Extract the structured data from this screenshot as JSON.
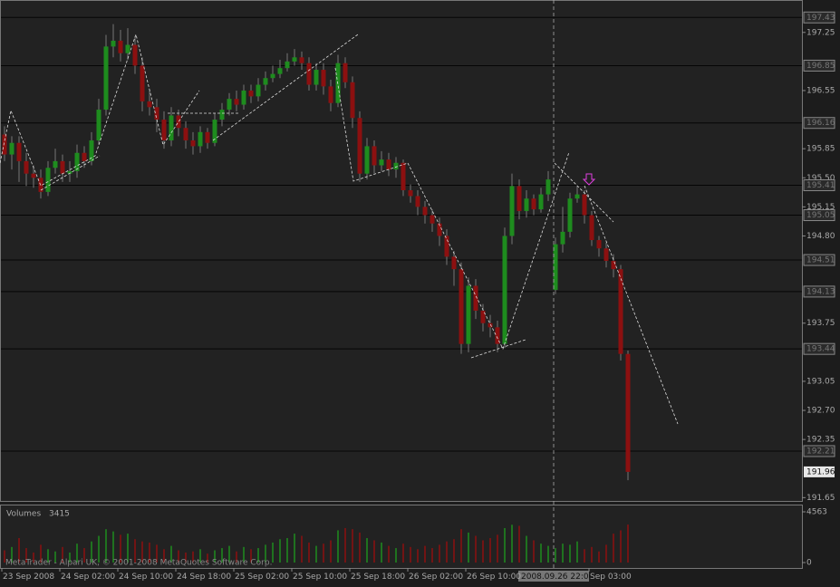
{
  "chart_data": {
    "type": "candlestick",
    "categories": [
      "23 Sep 2008",
      null,
      null,
      null,
      null,
      null,
      null,
      null,
      "24 Sep 02:00",
      null,
      null,
      null,
      null,
      null,
      null,
      null,
      "24 Sep 10:00",
      null,
      null,
      null,
      null,
      null,
      null,
      null,
      "24 Sep 18:00",
      null,
      null,
      null,
      null,
      null,
      null,
      null,
      "25 Sep 02:00",
      null,
      null,
      null,
      null,
      null,
      null,
      null,
      "25 Sep 10:00",
      null,
      null,
      null,
      null,
      null,
      null,
      null,
      "25 Sep 18:00",
      null,
      null,
      null,
      null,
      null,
      null,
      null,
      "26 Sep 02:00",
      null,
      null,
      null,
      null,
      null,
      null,
      null,
      "26 Sep 10:00",
      null,
      null,
      null,
      null,
      null,
      null,
      null,
      null,
      null,
      null,
      null,
      null,
      null,
      null,
      null,
      null,
      "Sep 03:00",
      null,
      null,
      null,
      null,
      null
    ],
    "open": [
      196.02,
      195.78,
      195.92,
      195.7,
      195.55,
      195.5,
      195.33,
      195.62,
      195.7,
      195.55,
      195.58,
      195.8,
      195.7,
      195.95,
      196.32,
      197.08,
      197.15,
      197.0,
      197.1,
      196.85,
      196.42,
      196.35,
      196.2,
      195.95,
      196.25,
      196.1,
      195.95,
      195.88,
      196.05,
      195.92,
      196.2,
      196.32,
      196.45,
      196.38,
      196.55,
      196.48,
      196.62,
      196.7,
      196.75,
      196.82,
      196.9,
      196.95,
      196.88,
      196.62,
      196.8,
      196.6,
      196.4,
      196.88,
      196.65,
      196.22,
      195.55,
      195.88,
      195.65,
      195.72,
      195.6,
      195.68,
      195.35,
      195.28,
      195.15,
      195.05,
      194.95,
      194.8,
      194.55,
      194.4,
      193.5,
      194.2,
      193.9,
      193.75,
      193.7,
      193.5,
      194.8,
      195.4,
      195.1,
      195.25,
      195.12,
      195.3,
      194.15,
      194.7,
      194.85,
      195.25,
      195.3,
      195.05,
      194.75,
      194.65,
      194.5,
      194.4,
      193.38
    ],
    "high": [
      196.12,
      196.0,
      196.0,
      195.8,
      195.65,
      195.6,
      195.7,
      195.85,
      195.78,
      195.7,
      195.9,
      195.88,
      196.05,
      196.45,
      197.22,
      197.35,
      197.28,
      197.3,
      197.2,
      196.95,
      196.55,
      196.45,
      196.3,
      196.35,
      196.32,
      196.18,
      196.05,
      196.12,
      196.1,
      196.28,
      196.4,
      196.52,
      196.55,
      196.62,
      196.62,
      196.7,
      196.78,
      196.85,
      196.92,
      197.0,
      197.05,
      197.02,
      196.95,
      196.88,
      196.88,
      196.68,
      196.98,
      196.95,
      196.72,
      196.3,
      195.98,
      195.95,
      195.82,
      195.8,
      195.75,
      195.72,
      195.42,
      195.35,
      195.22,
      195.12,
      195.02,
      194.88,
      194.62,
      194.48,
      194.3,
      194.28,
      193.98,
      193.85,
      193.78,
      194.9,
      195.55,
      195.48,
      195.35,
      195.3,
      195.38,
      195.58,
      194.78,
      195.15,
      195.32,
      195.4,
      195.35,
      195.1,
      194.8,
      194.72,
      194.58,
      194.45,
      193.42
    ],
    "low": [
      195.7,
      195.6,
      195.45,
      195.4,
      195.38,
      195.25,
      195.28,
      195.55,
      195.45,
      195.45,
      195.5,
      195.62,
      195.65,
      195.9,
      196.25,
      196.95,
      196.9,
      196.92,
      196.75,
      196.3,
      196.25,
      196.05,
      195.85,
      195.88,
      196.0,
      195.85,
      195.78,
      195.8,
      195.85,
      195.88,
      196.12,
      196.25,
      196.3,
      196.32,
      196.4,
      196.42,
      196.55,
      196.65,
      196.7,
      196.78,
      196.85,
      196.8,
      196.55,
      196.55,
      196.5,
      196.3,
      196.35,
      196.58,
      196.1,
      195.45,
      195.48,
      195.55,
      195.58,
      195.52,
      195.5,
      195.28,
      195.2,
      195.05,
      194.95,
      194.85,
      194.68,
      194.45,
      194.2,
      193.38,
      193.4,
      193.8,
      193.65,
      193.58,
      193.4,
      193.45,
      194.7,
      195.0,
      195.02,
      195.05,
      195.08,
      195.22,
      194.1,
      194.6,
      194.78,
      195.2,
      194.95,
      194.68,
      194.55,
      194.42,
      194.3,
      193.3,
      191.86
    ],
    "close": [
      195.78,
      195.92,
      195.7,
      195.55,
      195.5,
      195.33,
      195.62,
      195.7,
      195.55,
      195.58,
      195.8,
      195.7,
      195.95,
      196.32,
      197.08,
      197.15,
      197.0,
      197.1,
      196.85,
      196.42,
      196.35,
      196.2,
      195.95,
      196.25,
      196.1,
      195.95,
      195.88,
      196.05,
      195.92,
      196.2,
      196.32,
      196.45,
      196.38,
      196.55,
      196.48,
      196.62,
      196.7,
      196.75,
      196.82,
      196.9,
      196.95,
      196.88,
      196.62,
      196.8,
      196.6,
      196.4,
      196.88,
      196.65,
      196.22,
      195.55,
      195.88,
      195.65,
      195.72,
      195.6,
      195.68,
      195.35,
      195.28,
      195.15,
      195.05,
      194.95,
      194.8,
      194.55,
      194.4,
      193.5,
      194.2,
      193.9,
      193.75,
      193.7,
      193.5,
      194.8,
      195.4,
      195.1,
      195.25,
      195.12,
      195.3,
      195.48,
      194.7,
      194.85,
      195.25,
      195.3,
      195.05,
      194.75,
      194.65,
      194.5,
      194.4,
      193.38,
      191.96
    ],
    "up_color": "#1e8c1e",
    "down_color": "#8c1010",
    "ylim": [
      191.61,
      197.64
    ],
    "yticks": [
      197.25,
      196.55,
      195.85,
      {
        "value": 195.5,
        "label": "195.50"
      },
      195.15,
      {
        "value": 194.8,
        "label": "194.80"
      },
      193.75,
      193.05,
      {
        "value": 192.7,
        "label": "192.70"
      },
      192.35,
      191.65
    ],
    "levels": [
      197.43,
      196.85,
      196.16,
      195.41,
      195.05,
      194.51,
      194.13,
      193.44,
      192.21
    ],
    "volume_title": "Volumes",
    "volumes": [
      1100,
      1400,
      2200,
      1300,
      900,
      1600,
      1200,
      1000,
      1400,
      900,
      1700,
      1300,
      1900,
      2400,
      3000,
      2800,
      2500,
      2600,
      2100,
      1900,
      1800,
      1600,
      1200,
      1500,
      1100,
      900,
      1000,
      1200,
      800,
      1100,
      1300,
      1500,
      1000,
      1400,
      1200,
      1300,
      1600,
      1800,
      2100,
      2200,
      2600,
      2400,
      1800,
      1500,
      1700,
      2000,
      2900,
      3100,
      3000,
      2700,
      2200,
      2000,
      1800,
      1500,
      1300,
      1700,
      1400,
      1200,
      1500,
      1300,
      1600,
      1900,
      2100,
      3000,
      2700,
      2400,
      2000,
      2200,
      2500,
      3100,
      3400,
      3300,
      2400,
      2000,
      1700,
      1500,
      1300,
      1700,
      1600,
      1900,
      1200,
      1400,
      1000,
      1600,
      2600,
      2900,
      3415
    ],
    "vlim": [
      0,
      4563
    ],
    "vticks": [
      4563,
      0
    ],
    "cursor_time": "2008.09.26 22:00",
    "watermark": "MetaTrader - Alpari UK, © 2001-2008 MetaQuotes Software Corp."
  }
}
